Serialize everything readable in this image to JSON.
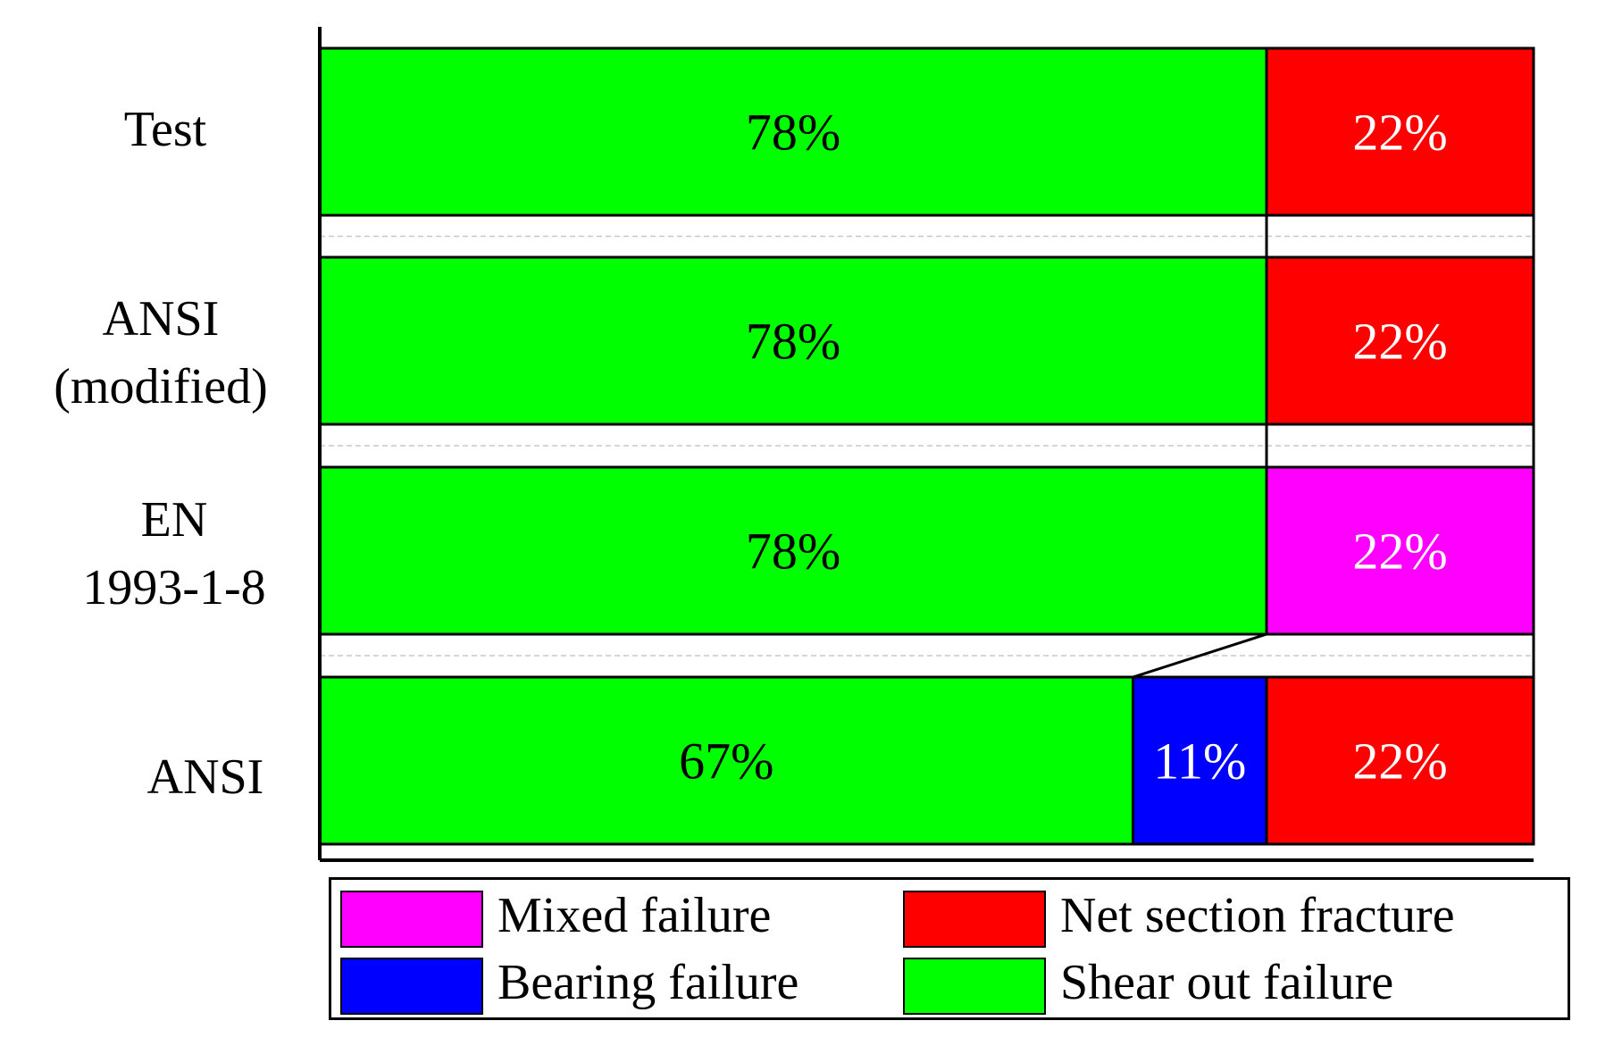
{
  "chart_data": {
    "type": "bar",
    "orientation": "horizontal",
    "stacked": true,
    "categories": [
      [
        "Test"
      ],
      [
        "ANSI",
        "(modified)"
      ],
      [
        "EN",
        "1993-1-8"
      ],
      [
        "ANSI"
      ]
    ],
    "series": [
      {
        "name": "Shear out failure",
        "color": "#00ff00",
        "values": [
          78,
          78,
          78,
          67
        ],
        "label_color": "#000000"
      },
      {
        "name": "Bearing failure",
        "color": "#0000ff",
        "values": [
          0,
          0,
          0,
          11
        ],
        "label_color": "#ffffff"
      },
      {
        "name": "Mixed failure",
        "color": "#ff00ff",
        "values": [
          0,
          0,
          22,
          0
        ],
        "label_color": "#ffffff"
      },
      {
        "name": "Net section fracture",
        "color": "#ff0000",
        "values": [
          22,
          22,
          0,
          22
        ],
        "label_color": "#ffffff"
      }
    ],
    "value_format": "{v}%",
    "xlim": [
      0,
      100
    ],
    "grid": false,
    "legend": {
      "placement": "bottom",
      "items": [
        {
          "label": "Mixed failure",
          "color": "#ff00ff"
        },
        {
          "label": "Net section fracture",
          "color": "#ff0000"
        },
        {
          "label": "Bearing failure",
          "color": "#0000ff"
        },
        {
          "label": "Shear out failure",
          "color": "#00ff00"
        }
      ]
    }
  }
}
